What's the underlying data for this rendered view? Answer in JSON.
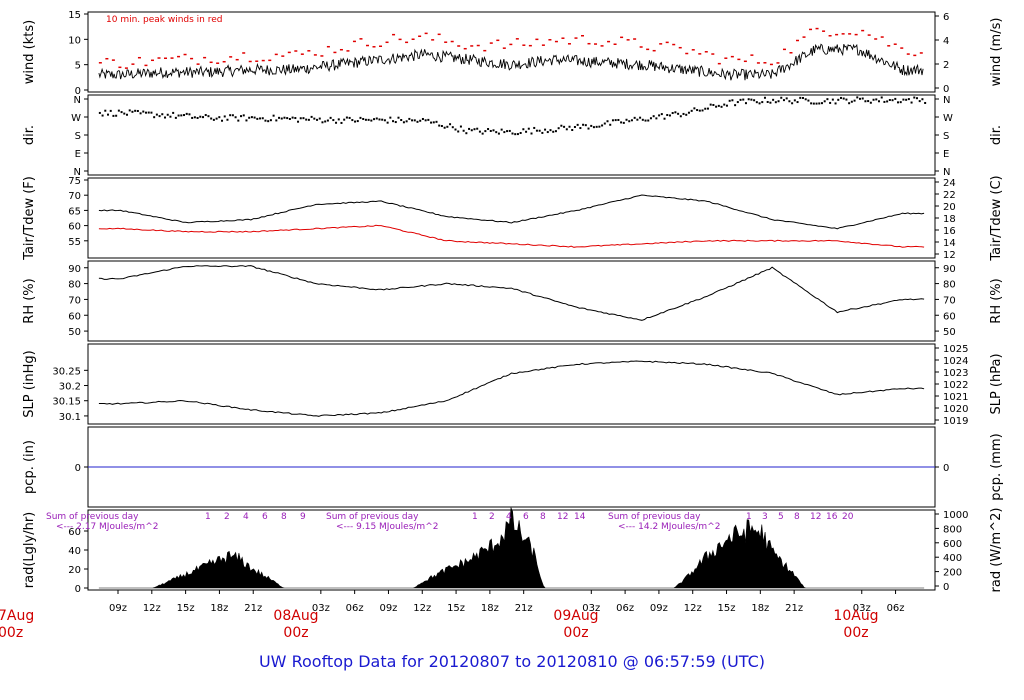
{
  "title": "UW Rooftop Data for 20120807  to  20120810 @ 06:57:59  (UTC)",
  "colors": {
    "series": "#000000",
    "dewpoint": "#e00000",
    "peak": "#e00000",
    "precip": "#2222cc",
    "radsum": "#9a20b8",
    "title": "#1a1ad0",
    "daylabel": "#d00000"
  },
  "chart_data": [
    {
      "type": "line",
      "panel": "wind",
      "ylabel_left": "wind (kts)",
      "ylabel_right": "wind (m/s)",
      "ylim": [
        0,
        15
      ],
      "yticks_left": [
        0,
        5,
        10,
        15
      ],
      "yticks_right": [
        0,
        2,
        4,
        6
      ],
      "annotation": "10 min. peak winds in red",
      "series": [
        {
          "name": "wind",
          "x": [
            0,
            4,
            8,
            12,
            16,
            20,
            24,
            28,
            32,
            36,
            40,
            44,
            48,
            52,
            56,
            60,
            64,
            68,
            72
          ],
          "values": [
            3,
            3.5,
            3.5,
            4,
            4,
            5,
            6,
            7,
            6,
            5,
            6,
            5.5,
            5,
            4,
            3,
            3,
            8,
            8,
            4
          ]
        },
        {
          "name": "10 min. peak",
          "x": [
            0,
            4,
            8,
            12,
            16,
            20,
            24,
            28,
            32,
            36,
            40,
            44,
            48,
            52,
            56,
            60,
            64,
            68,
            72
          ],
          "values": [
            5.5,
            6,
            6.5,
            7,
            7,
            8.5,
            10,
            10.5,
            9,
            9,
            10,
            10,
            9,
            8,
            6,
            6,
            12,
            12,
            8
          ]
        }
      ]
    },
    {
      "type": "scatter",
      "panel": "dir",
      "ylabel_left": "dir.",
      "ylabel_right": "dir.",
      "yticks": [
        "N",
        "W",
        "S",
        "E",
        "N"
      ],
      "series": [
        {
          "name": "direction",
          "x": [
            0,
            4,
            8,
            12,
            16,
            20,
            24,
            28,
            32,
            36,
            40,
            44,
            48,
            52,
            56,
            60,
            64,
            68,
            72
          ],
          "values": [
            290,
            280,
            265,
            265,
            260,
            255,
            255,
            250,
            200,
            195,
            210,
            230,
            260,
            290,
            340,
            355,
            350,
            355,
            355
          ]
        }
      ]
    },
    {
      "type": "line",
      "panel": "temperature",
      "ylabel_left": "Tair/Tdew (F)",
      "ylabel_right": "Tair/Tdew (C)",
      "ylim": [
        50,
        75
      ],
      "yticks_left": [
        55,
        60,
        65,
        70,
        75
      ],
      "yticks_right": [
        12,
        14,
        16,
        18,
        20,
        22,
        24
      ],
      "series": [
        {
          "name": "Tair",
          "x": [
            0,
            6,
            12,
            18,
            24,
            30,
            36,
            42,
            48,
            54,
            60,
            66,
            72
          ],
          "values": [
            65,
            61,
            62,
            67,
            68,
            63,
            61,
            65,
            70,
            68,
            62,
            59,
            64
          ]
        },
        {
          "name": "Tdew",
          "x": [
            0,
            6,
            12,
            18,
            24,
            30,
            36,
            42,
            48,
            54,
            60,
            66,
            72
          ],
          "values": [
            59,
            58,
            58,
            59,
            60,
            55,
            54,
            53,
            54,
            55,
            55,
            55,
            53
          ]
        }
      ]
    },
    {
      "type": "line",
      "panel": "rh",
      "ylabel_left": "RH (%)",
      "ylabel_right": "RH (%)",
      "ylim": [
        45,
        93
      ],
      "yticks_left": [
        50,
        60,
        70,
        80,
        90
      ],
      "yticks_right": [
        50,
        60,
        70,
        80,
        90
      ],
      "series": [
        {
          "name": "RH",
          "x": [
            0,
            6,
            12,
            18,
            24,
            30,
            36,
            42,
            48,
            54,
            60,
            66,
            72
          ],
          "values": [
            83,
            91,
            91,
            80,
            76,
            80,
            77,
            65,
            57,
            72,
            90,
            62,
            70
          ]
        }
      ]
    },
    {
      "type": "line",
      "panel": "pressure",
      "ylabel_left": "SLP (inHg)",
      "ylabel_right": "SLP (hPa)",
      "ylim": [
        30.08,
        30.33
      ],
      "yticks_left": [
        30.1,
        30.15,
        30.2,
        30.25
      ],
      "yticks_right": [
        1019,
        1020,
        1021,
        1022,
        1023,
        1024,
        1025
      ],
      "series": [
        {
          "name": "SLP",
          "x": [
            0,
            6,
            12,
            18,
            24,
            30,
            36,
            42,
            48,
            54,
            60,
            66,
            72
          ],
          "values": [
            30.14,
            30.15,
            30.12,
            30.1,
            30.11,
            30.15,
            30.24,
            30.27,
            30.28,
            30.27,
            30.24,
            30.17,
            30.19
          ]
        }
      ]
    },
    {
      "type": "line",
      "panel": "precip",
      "ylabel_left": "pcp. (in)",
      "ylabel_right": "pcp. (mm)",
      "yticks_left": [
        0
      ],
      "yticks_right": [
        0
      ],
      "series": [
        {
          "name": "precip",
          "x": [
            0,
            72
          ],
          "values": [
            0,
            0
          ]
        }
      ]
    },
    {
      "type": "area",
      "panel": "radiation",
      "ylabel_left": "rad(Lgly/hr)",
      "ylabel_right": "rad (W/m^2)",
      "ylim": [
        0,
        80
      ],
      "yticks_left": [
        0,
        20,
        40,
        60
      ],
      "yticks_right": [
        0,
        200,
        400,
        600,
        800,
        1000
      ],
      "daily_sums": [
        {
          "label": "Sum of previous day",
          "value": "<--- 2.17 MJoules/m^2"
        },
        {
          "label": "Sum of previous day",
          "value": "<--- 9.15 MJoules/m^2"
        },
        {
          "label": "Sum of previous day",
          "value": "<--- 14.2 MJoules/m^2"
        }
      ],
      "hour_marks": [
        {
          "labels": [
            "1",
            "2",
            "4",
            "6",
            "8",
            "9"
          ]
        },
        {
          "labels": [
            "1",
            "2",
            "4",
            "6",
            "8",
            "12",
            "14"
          ]
        },
        {
          "labels": [
            "1",
            "3",
            "5",
            "8",
            "12",
            "16",
            "20"
          ]
        }
      ],
      "series": [
        {
          "name": "radiation",
          "x": [
            0,
            3,
            4,
            6,
            8,
            10,
            11,
            12,
            14,
            15,
            24,
            27,
            28,
            30,
            32,
            34,
            35,
            36,
            38,
            39,
            48,
            51,
            52,
            54,
            56,
            58,
            59,
            60,
            62,
            63,
            72
          ],
          "values": [
            0,
            0,
            5,
            15,
            25,
            35,
            32,
            22,
            8,
            0,
            0,
            0,
            8,
            20,
            30,
            45,
            55,
            75,
            40,
            0,
            0,
            0,
            10,
            35,
            55,
            65,
            62,
            40,
            15,
            0,
            0
          ]
        }
      ]
    }
  ],
  "x_axis": {
    "hour_ticks": [
      "09z",
      "12z",
      "15z",
      "18z",
      "21z",
      "03z",
      "06z",
      "09z",
      "12z",
      "15z",
      "18z",
      "21z",
      "03z",
      "06z",
      "09z",
      "12z",
      "15z",
      "18z",
      "21z",
      "03z",
      "06z"
    ],
    "day_labels": [
      {
        "date": "7Aug",
        "time": "00z"
      },
      {
        "date": "08Aug",
        "time": "00z"
      },
      {
        "date": "09Aug",
        "time": "00z"
      },
      {
        "date": "10Aug",
        "time": "00z"
      }
    ]
  }
}
